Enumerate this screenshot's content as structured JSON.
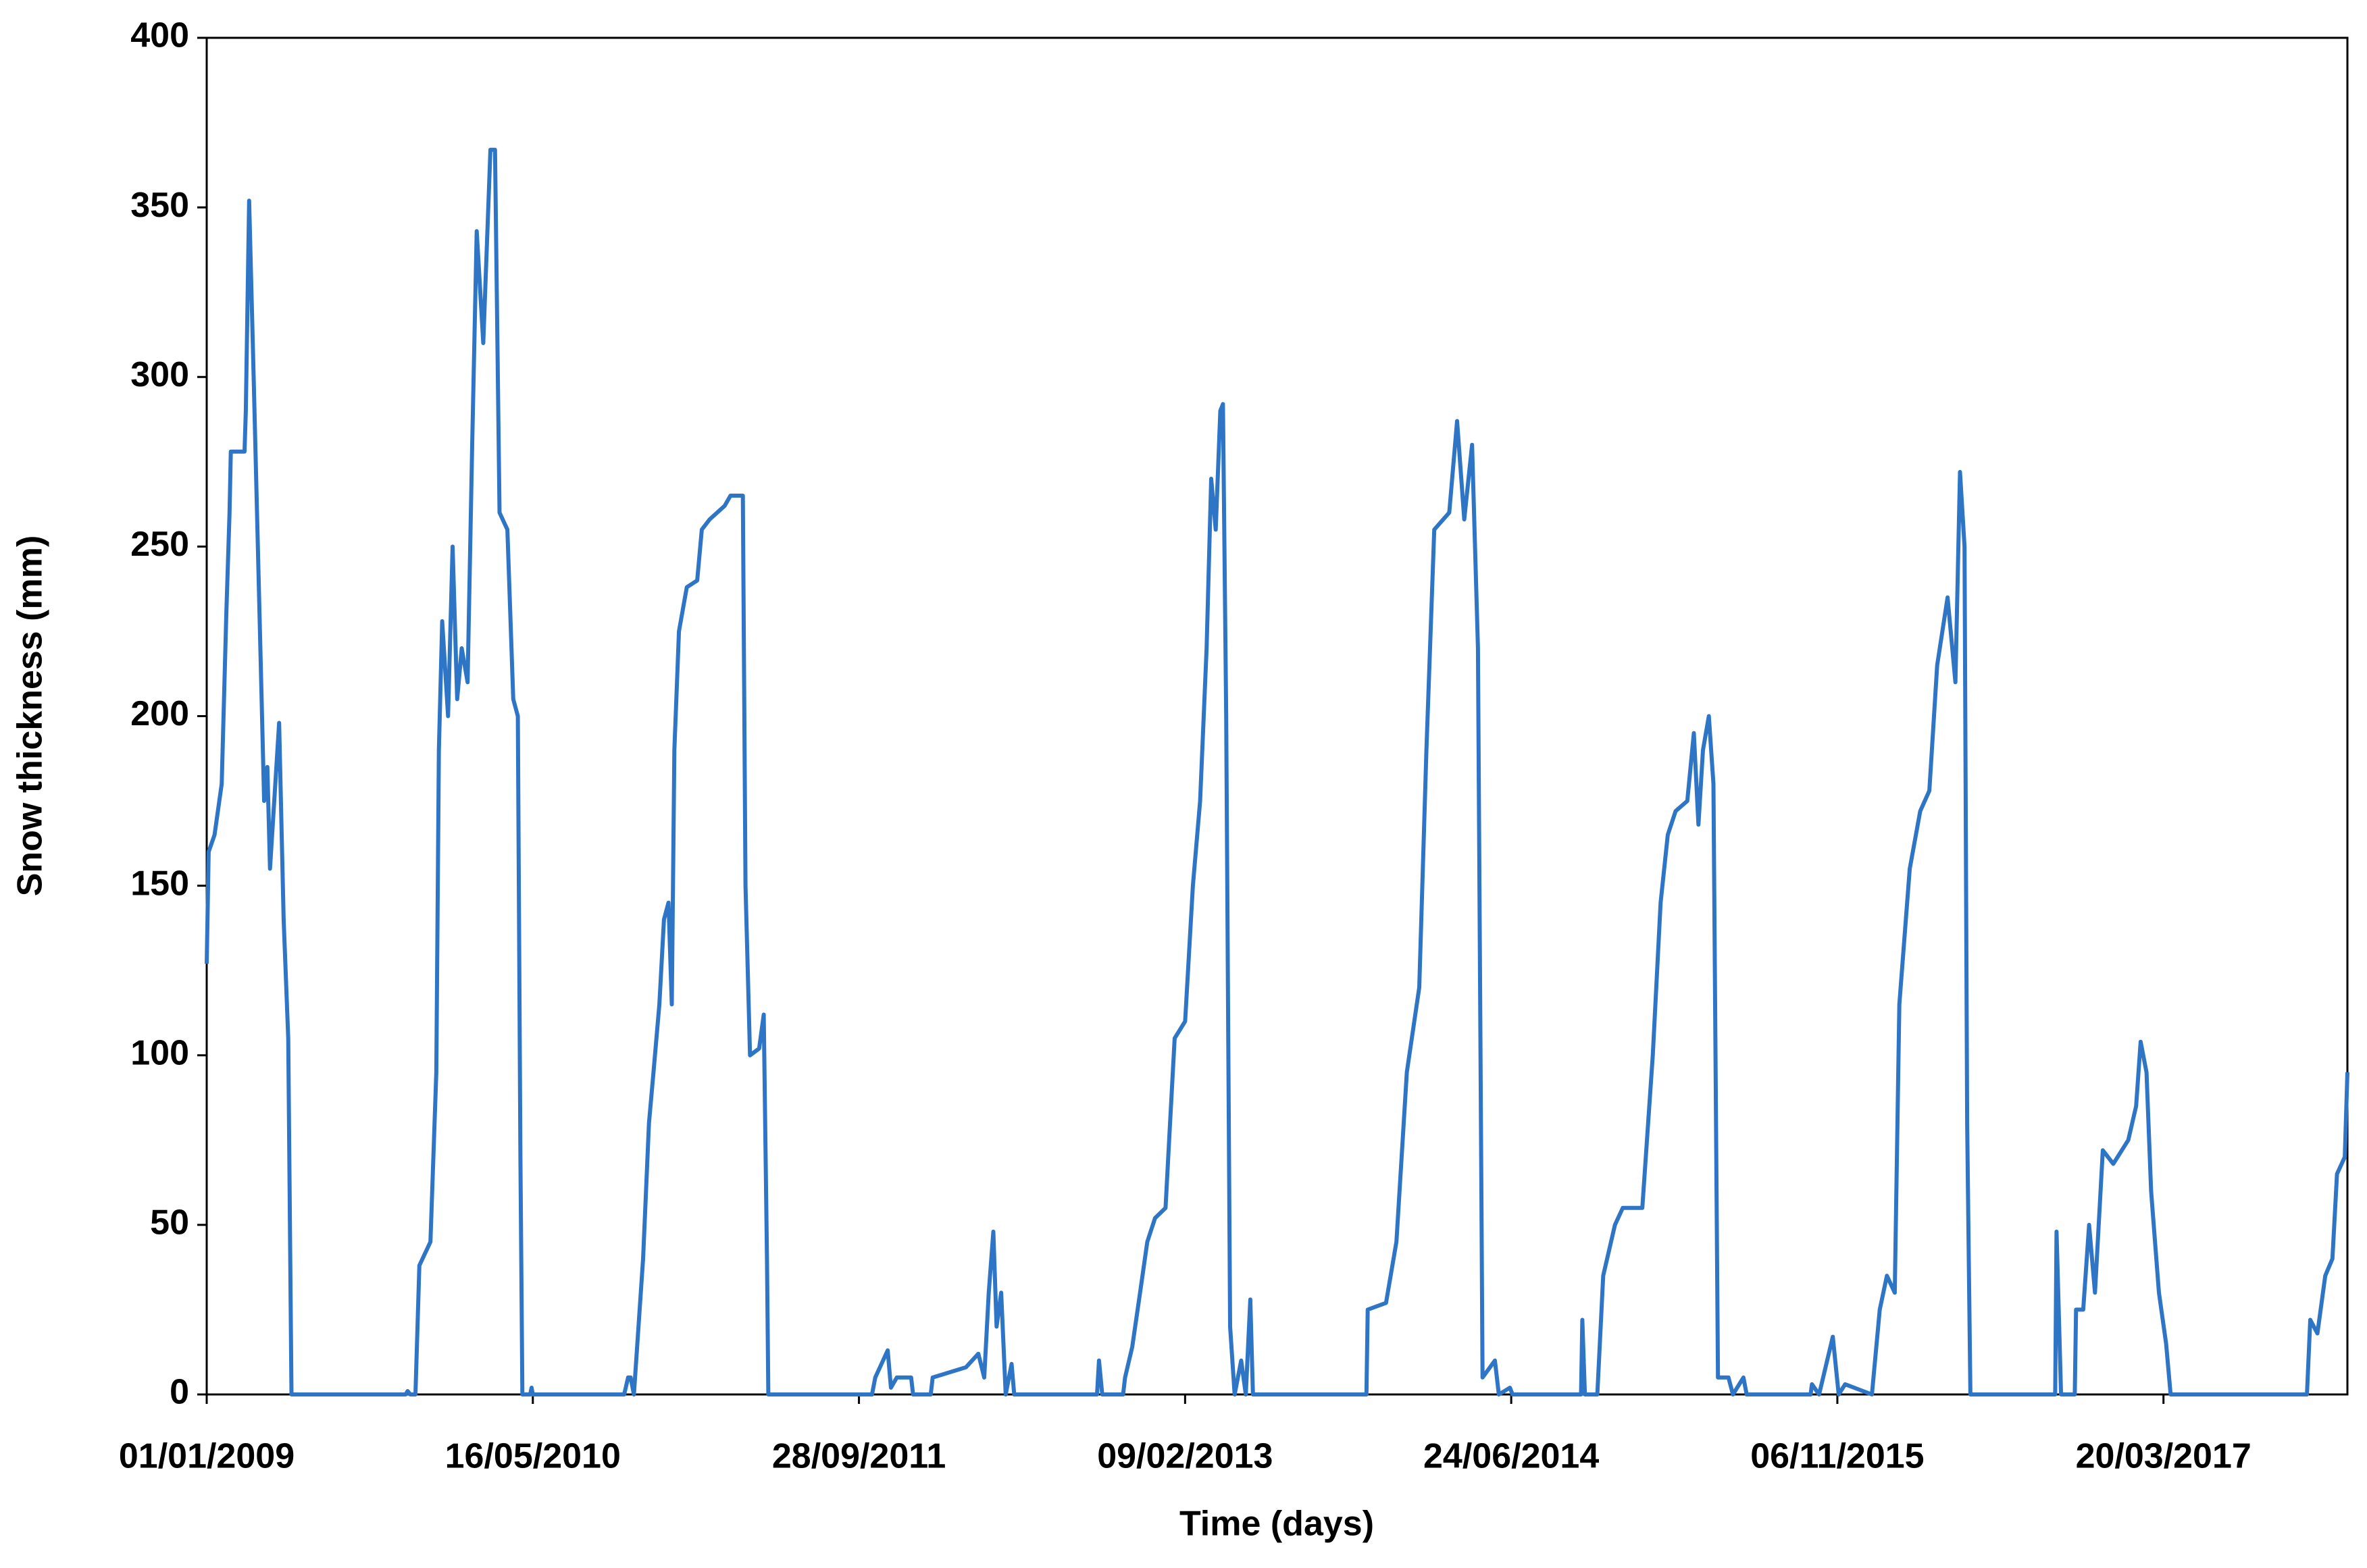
{
  "chart_data": {
    "type": "line",
    "xlabel": "Time (days)",
    "ylabel": "Snow thickness (mm)",
    "xlim": [
      0,
      3282
    ],
    "ylim": [
      0,
      400
    ],
    "xticks": [
      {
        "value": 0,
        "label": "01/01/2009"
      },
      {
        "value": 500,
        "label": "16/05/2010"
      },
      {
        "value": 1000,
        "label": "28/09/2011"
      },
      {
        "value": 1500,
        "label": "09/02/2013"
      },
      {
        "value": 2000,
        "label": "24/06/2014"
      },
      {
        "value": 2500,
        "label": "06/11/2015"
      },
      {
        "value": 3000,
        "label": "20/03/2017"
      }
    ],
    "yticks": [
      0,
      50,
      100,
      150,
      200,
      250,
      300,
      350,
      400
    ],
    "series": [
      {
        "color": "#2e75c6",
        "x": [
          0,
          3,
          12,
          23,
          30,
          35,
          37,
          58,
          60,
          65,
          72,
          81,
          88,
          93,
          97,
          111,
          118,
          125,
          130,
          305,
          308,
          312,
          320,
          326,
          343,
          352,
          356,
          361,
          370,
          377,
          384,
          391,
          400,
          407,
          414,
          424,
          435,
          442,
          449,
          461,
          470,
          477,
          481,
          484,
          496,
          498,
          500,
          640,
          646,
          650,
          655,
          669,
          678,
          685,
          694,
          701,
          708,
          713,
          717,
          724,
          736,
          752,
          759,
          771,
          794,
          803,
          822,
          826,
          833,
          847,
          854,
          859,
          861,
          1020,
          1025,
          1044,
          1049,
          1058,
          1080,
          1083,
          1110,
          1113,
          1164,
          1183,
          1192,
          1199,
          1206,
          1211,
          1218,
          1225,
          1234,
          1238,
          1365,
          1368,
          1373,
          1405,
          1408,
          1419,
          1431,
          1442,
          1454,
          1470,
          1477,
          1484,
          1500,
          1512,
          1523,
          1533,
          1540,
          1547,
          1554,
          1558,
          1563,
          1569,
          1576,
          1586,
          1593,
          1600,
          1604,
          1778,
          1780,
          1808,
          1824,
          1840,
          1859,
          1870,
          1882,
          1905,
          1917,
          1928,
          1940,
          1949,
          1956,
          1975,
          1981,
          1998,
          2002,
          2107,
          2109,
          2113,
          2132,
          2141,
          2159,
          2171,
          2201,
          2217,
          2229,
          2240,
          2252,
          2270,
          2280,
          2287,
          2294,
          2303,
          2310,
          2317,
          2333,
          2340,
          2356,
          2361,
          2459,
          2461,
          2472,
          2493,
          2502,
          2512,
          2553,
          2565,
          2576,
          2588,
          2595,
          2611,
          2627,
          2641,
          2653,
          2669,
          2681,
          2688,
          2695,
          2699,
          2704,
          2834,
          2836,
          2843,
          2864,
          2866,
          2877,
          2886,
          2895,
          2907,
          2923,
          2946,
          2958,
          2965,
          2974,
          2981,
          2993,
          3004,
          3011,
          3220,
          3225,
          3236,
          3248,
          3259,
          3266,
          3278,
          3282
        ],
        "values": [
          127,
          160,
          165,
          180,
          230,
          260,
          278,
          278,
          290,
          352,
          300,
          230,
          175,
          185,
          155,
          198,
          140,
          105,
          0,
          0,
          1,
          0,
          0,
          38,
          45,
          95,
          190,
          228,
          200,
          250,
          205,
          220,
          210,
          280,
          343,
          310,
          367,
          367,
          260,
          255,
          205,
          200,
          70,
          0,
          0,
          2,
          0,
          0,
          5,
          5,
          0,
          40,
          80,
          95,
          115,
          140,
          145,
          115,
          190,
          225,
          238,
          240,
          255,
          258,
          262,
          265,
          265,
          150,
          100,
          102,
          112,
          40,
          0,
          0,
          5,
          13,
          2,
          5,
          5,
          0,
          0,
          5,
          8,
          12,
          5,
          30,
          48,
          20,
          30,
          0,
          9,
          0,
          0,
          10,
          0,
          0,
          5,
          14,
          30,
          45,
          52,
          55,
          80,
          105,
          110,
          150,
          175,
          220,
          270,
          255,
          290,
          292,
          200,
          20,
          0,
          10,
          0,
          28,
          0,
          0,
          25,
          27,
          45,
          95,
          120,
          190,
          255,
          260,
          287,
          258,
          280,
          220,
          5,
          10,
          0,
          2,
          0,
          0,
          22,
          0,
          0,
          35,
          50,
          55,
          55,
          100,
          145,
          165,
          172,
          175,
          195,
          168,
          190,
          200,
          180,
          5,
          5,
          0,
          5,
          0,
          0,
          3,
          0,
          17,
          0,
          3,
          0,
          25,
          35,
          30,
          115,
          155,
          172,
          178,
          215,
          235,
          210,
          272,
          250,
          80,
          0,
          0,
          48,
          0,
          0,
          25,
          25,
          50,
          30,
          72,
          68,
          75,
          85,
          104,
          95,
          60,
          30,
          15,
          0,
          0,
          22,
          18,
          35,
          40,
          65,
          70,
          95
        ]
      }
    ]
  }
}
